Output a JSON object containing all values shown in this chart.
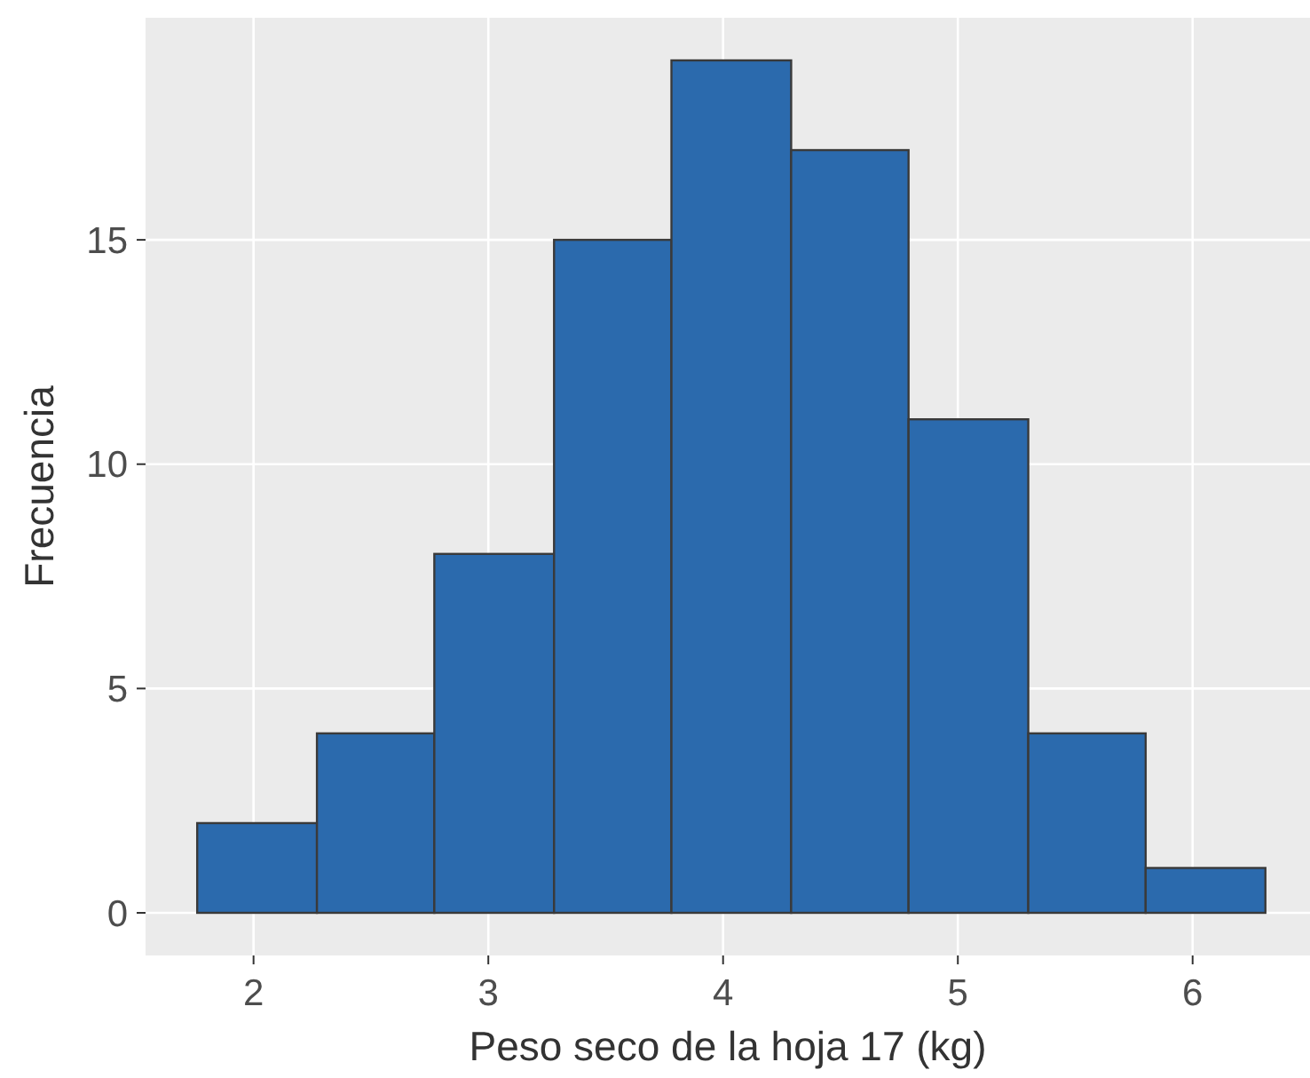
{
  "chart_data": {
    "type": "histogram",
    "xlabel": "Peso seco de la hoja 17 (kg)",
    "ylabel": "Frecuencia",
    "bins": [
      1.76,
      2.27,
      2.77,
      3.28,
      3.78,
      4.29,
      4.79,
      5.3,
      5.8,
      6.31
    ],
    "values": [
      2,
      4,
      8,
      15,
      19,
      17,
      11,
      4,
      1
    ],
    "color": "#2b6aad",
    "xlim": [
      1.54,
      6.5
    ],
    "xticks": [
      2,
      3,
      4,
      5,
      6
    ],
    "ylim": [
      -0.95,
      19.95
    ],
    "yticks": [
      0,
      5,
      10,
      15
    ],
    "grid": true
  }
}
